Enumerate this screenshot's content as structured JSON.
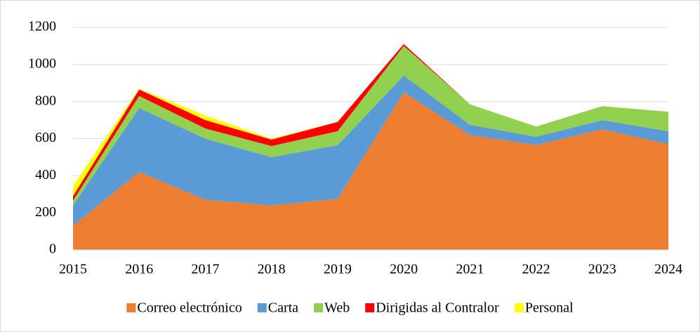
{
  "chart_data": {
    "type": "stacked_area",
    "categories": [
      "2015",
      "2016",
      "2017",
      "2018",
      "2019",
      "2020",
      "2021",
      "2022",
      "2023",
      "2024"
    ],
    "series": [
      {
        "name": "Correo electrónico",
        "color": "#ed7d31",
        "values": [
          130,
          420,
          270,
          240,
          275,
          850,
          620,
          565,
          650,
          570
        ]
      },
      {
        "name": "Carta",
        "color": "#5b9bd5",
        "values": [
          110,
          345,
          330,
          260,
          290,
          90,
          55,
          45,
          50,
          70
        ]
      },
      {
        "name": "Web",
        "color": "#92d050",
        "values": [
          25,
          65,
          55,
          60,
          75,
          160,
          110,
          55,
          75,
          105
        ]
      },
      {
        "name": "Dirigidas al Contralor",
        "color": "#ff0000",
        "values": [
          25,
          35,
          45,
          35,
          50,
          10,
          0,
          0,
          0,
          0
        ]
      },
      {
        "name": "Personal",
        "color": "#ffff00",
        "values": [
          55,
          5,
          25,
          5,
          0,
          0,
          0,
          0,
          0,
          0
        ]
      }
    ],
    "ylim": [
      0,
      1200
    ],
    "yticks": [
      0,
      200,
      400,
      600,
      800,
      1000,
      1200
    ],
    "grid": true,
    "legend": "bottom"
  }
}
